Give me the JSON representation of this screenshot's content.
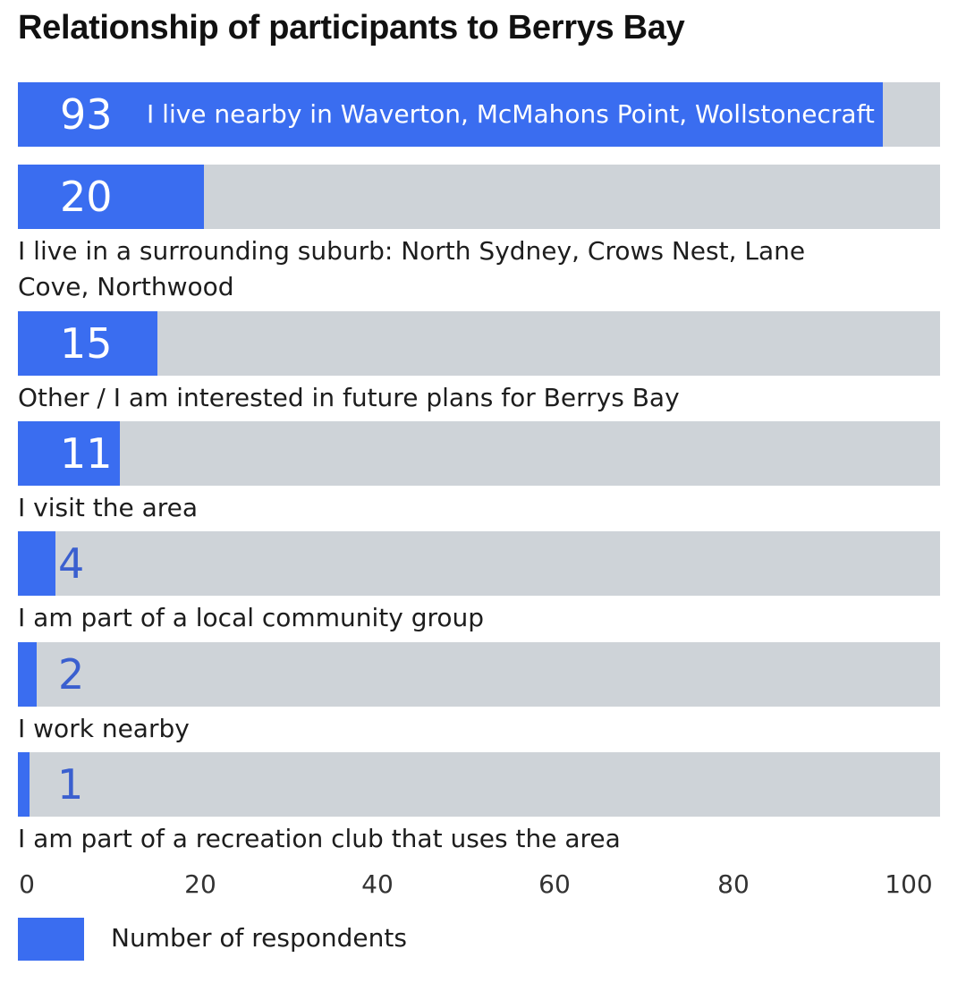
{
  "chart_data": {
    "type": "bar",
    "orientation": "horizontal",
    "title": "Relationship of participants to Berrys Bay",
    "xlim": [
      0,
      100
    ],
    "xticks": [
      "0",
      "20",
      "40",
      "60",
      "80",
      "100"
    ],
    "categories": [
      "I live nearby in Waverton, McMahons Point, Wollstonecraft",
      "I live in a surrounding suburb: North Sydney, Crows Nest, Lane Cove, Northwood",
      "Other / I am interested in future plans for Berrys Bay",
      "I visit the area",
      "I am part of a local community group",
      "I work nearby",
      "I am part of a recreation club that uses the area"
    ],
    "series": [
      {
        "name": "Number of respondents",
        "values": [
          93,
          20,
          15,
          11,
          4,
          2,
          1
        ],
        "color": "#3a6df0"
      }
    ],
    "legend": "bottom-left",
    "track_color": "#ced3d8"
  }
}
